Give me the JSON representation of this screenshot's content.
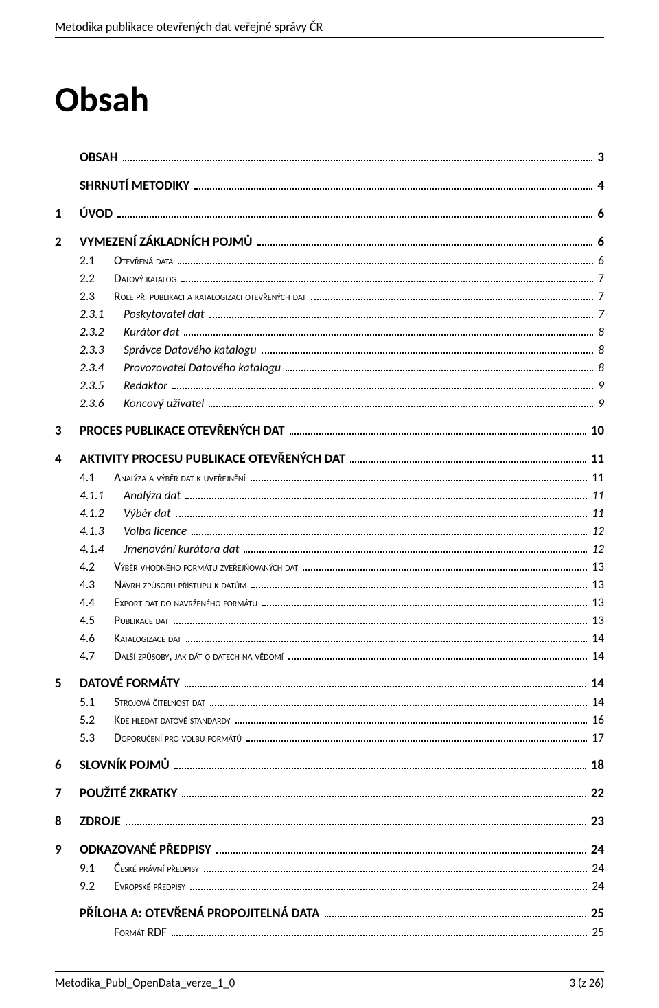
{
  "header": {
    "text": "Metodika publikace otevřených dat veřejné správy ČR"
  },
  "title": "Obsah",
  "toc": [
    {
      "level": 0,
      "num": "",
      "label": "OBSAH",
      "page": "3"
    },
    {
      "level": 0,
      "num": "",
      "label": "SHRNUTÍ METODIKY",
      "page": "4"
    },
    {
      "level": 0,
      "num": "1",
      "label": "ÚVOD",
      "page": "6"
    },
    {
      "level": 0,
      "num": "2",
      "label": "VYMEZENÍ ZÁKLADNÍCH POJMŮ",
      "page": "6"
    },
    {
      "level": 1,
      "num": "2.1",
      "label": "Otevřená data",
      "page": "6"
    },
    {
      "level": 1,
      "num": "2.2",
      "label": "Datový katalog",
      "page": "7"
    },
    {
      "level": 1,
      "num": "2.3",
      "label": "Role při publikaci a katalogizaci otevřených dat",
      "page": "7"
    },
    {
      "level": 2,
      "num": "2.3.1",
      "label": "Poskytovatel dat",
      "page": "7"
    },
    {
      "level": 2,
      "num": "2.3.2",
      "label": "Kurátor dat",
      "page": "8"
    },
    {
      "level": 2,
      "num": "2.3.3",
      "label": "Správce Datového katalogu",
      "page": "8"
    },
    {
      "level": 2,
      "num": "2.3.4",
      "label": "Provozovatel Datového katalogu",
      "page": "8"
    },
    {
      "level": 2,
      "num": "2.3.5",
      "label": "Redaktor",
      "page": "9"
    },
    {
      "level": 2,
      "num": "2.3.6",
      "label": "Koncový uživatel",
      "page": "9"
    },
    {
      "level": 0,
      "num": "3",
      "label": "PROCES PUBLIKACE OTEVŘENÝCH DAT",
      "page": "10"
    },
    {
      "level": 0,
      "num": "4",
      "label": "AKTIVITY PROCESU PUBLIKACE OTEVŘENÝCH DAT",
      "page": "11"
    },
    {
      "level": 1,
      "num": "4.1",
      "label": "Analýza a výběr dat k uveřejnění",
      "page": "11"
    },
    {
      "level": 2,
      "num": "4.1.1",
      "label": "Analýza dat",
      "page": "11"
    },
    {
      "level": 2,
      "num": "4.1.2",
      "label": "Výběr dat",
      "page": "11"
    },
    {
      "level": 2,
      "num": "4.1.3",
      "label": "Volba licence",
      "page": "12"
    },
    {
      "level": 2,
      "num": "4.1.4",
      "label": "Jmenování kurátora dat",
      "page": "12"
    },
    {
      "level": 1,
      "num": "4.2",
      "label": "Výběr vhodného formátu zveřejňovaných dat",
      "page": "13"
    },
    {
      "level": 1,
      "num": "4.3",
      "label": "Návrh způsobu přístupu k datům",
      "page": "13"
    },
    {
      "level": 1,
      "num": "4.4",
      "label": "Export dat do navrženého formátu",
      "page": "13"
    },
    {
      "level": 1,
      "num": "4.5",
      "label": "Publikace dat",
      "page": "13"
    },
    {
      "level": 1,
      "num": "4.6",
      "label": "Katalogizace dat",
      "page": "14"
    },
    {
      "level": 1,
      "num": "4.7",
      "label": "Další způsoby, jak dát o datech na vědomí",
      "page": "14"
    },
    {
      "level": 0,
      "num": "5",
      "label": "DATOVÉ FORMÁTY",
      "page": "14"
    },
    {
      "level": 1,
      "num": "5.1",
      "label": "Strojová čitelnost dat",
      "page": "14"
    },
    {
      "level": 1,
      "num": "5.2",
      "label": "Kde hledat datové standardy",
      "page": "16"
    },
    {
      "level": 1,
      "num": "5.3",
      "label": "Doporučení pro volbu formátů",
      "page": "17"
    },
    {
      "level": 0,
      "num": "6",
      "label": "SLOVNÍK POJMŮ",
      "page": "18"
    },
    {
      "level": 0,
      "num": "7",
      "label": "POUŽITÉ ZKRATKY",
      "page": "22"
    },
    {
      "level": 0,
      "num": "8",
      "label": "ZDROJE",
      "page": "23"
    },
    {
      "level": 0,
      "num": "9",
      "label": "ODKAZOVANÉ PŘEDPISY",
      "page": "24"
    },
    {
      "level": 1,
      "num": "9.1",
      "label": "České právní předpisy",
      "page": "24"
    },
    {
      "level": 1,
      "num": "9.2",
      "label": "Evropské předpisy",
      "page": "24"
    },
    {
      "level": 0,
      "num": "",
      "label": "PŘÍLOHA A: OTEVŘENÁ PROPOJITELNÁ DATA",
      "page": "25"
    },
    {
      "level": 1,
      "num": "",
      "label": "Formát RDF",
      "page": "25"
    }
  ],
  "footer": {
    "left": "Metodika_Publ_OpenData_verze_1_0",
    "right": "3 (z 26)"
  }
}
